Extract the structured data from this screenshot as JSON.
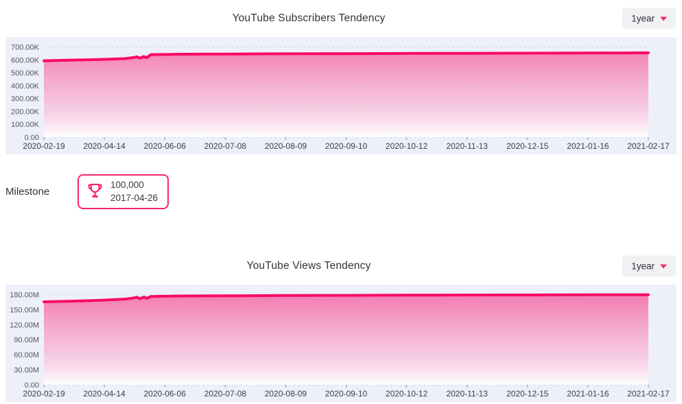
{
  "accent_color": "#f3256e",
  "panels": [
    {
      "title": "YouTube Subscribers Tendency",
      "range_selector": {
        "label": "1year",
        "icon": "caret-down-icon"
      }
    },
    {
      "title": "YouTube Views Tendency",
      "range_selector": {
        "label": "1year",
        "icon": "caret-down-icon"
      }
    }
  ],
  "milestone": {
    "label": "Milestone",
    "badge": {
      "icon": "trophy-icon",
      "value": "100,000",
      "date": "2017-04-26"
    }
  },
  "chart_data": [
    {
      "type": "area",
      "title": "YouTube Subscribers Tendency",
      "background": "#edf0f9",
      "line_color": "#fa0a64",
      "area_gradient": {
        "top": "#f46ca8",
        "mid": "#f8bcd8",
        "bottom": "#ffffff"
      },
      "grid": "dashed",
      "legend": "none",
      "ylim": [
        0,
        725000
      ],
      "y_tick_values": [
        0,
        100000,
        200000,
        300000,
        400000,
        500000,
        600000,
        700000
      ],
      "y_tick_labels": [
        "0.00",
        "100.00K",
        "200.00K",
        "300.00K",
        "400.00K",
        "500.00K",
        "600.00K",
        "700.00K"
      ],
      "x_tick_labels": [
        "2020-02-19",
        "2020-04-14",
        "2020-06-06",
        "2020-07-08",
        "2020-08-09",
        "2020-09-10",
        "2020-10-12",
        "2020-11-13",
        "2020-12-15",
        "2021-01-16",
        "2021-02-17"
      ],
      "series": [
        {
          "name": "Subscribers",
          "points": [
            [
              0,
              594000
            ],
            [
              0.04,
              598000
            ],
            [
              0.08,
              602500
            ],
            [
              0.11,
              606500
            ],
            [
              0.135,
              611000
            ],
            [
              0.148,
              619000
            ],
            [
              0.154,
              625000
            ],
            [
              0.159,
              614000
            ],
            [
              0.165,
              627000
            ],
            [
              0.17,
              618000
            ],
            [
              0.177,
              642000
            ],
            [
              0.21,
              644000
            ],
            [
              0.26,
              645500
            ],
            [
              0.32,
              646500
            ],
            [
              0.4,
              648000
            ],
            [
              0.5,
              649500
            ],
            [
              0.6,
              651000
            ],
            [
              0.7,
              652000
            ],
            [
              0.8,
              653000
            ],
            [
              0.9,
              654000
            ],
            [
              1,
              655500
            ]
          ]
        }
      ]
    },
    {
      "type": "area",
      "title": "YouTube Views Tendency",
      "background": "#edf0f9",
      "line_color": "#fa0a64",
      "area_gradient": {
        "top": "#f46ca8",
        "mid": "#f8bcd8",
        "bottom": "#ffffff"
      },
      "grid": "dashed",
      "legend": "none",
      "ylim": [
        0,
        186000000
      ],
      "y_tick_values": [
        0,
        30000000,
        60000000,
        90000000,
        120000000,
        150000000,
        180000000
      ],
      "y_tick_labels": [
        "0.00",
        "30.00M",
        "60.00M",
        "90.00M",
        "120.00M",
        "150.00M",
        "180.00M"
      ],
      "x_tick_labels": [
        "2020-02-19",
        "2020-04-14",
        "2020-06-06",
        "2020-07-08",
        "2020-08-09",
        "2020-09-10",
        "2020-10-12",
        "2020-11-13",
        "2020-12-15",
        "2021-01-16",
        "2021-02-17"
      ],
      "series": [
        {
          "name": "Views",
          "points": [
            [
              0,
              165500000
            ],
            [
              0.04,
              166500000
            ],
            [
              0.08,
              168000000
            ],
            [
              0.11,
              169500000
            ],
            [
              0.135,
              171000000
            ],
            [
              0.148,
              173000000
            ],
            [
              0.154,
              174500000
            ],
            [
              0.159,
              171500000
            ],
            [
              0.165,
              175000000
            ],
            [
              0.17,
              172500000
            ],
            [
              0.177,
              176200000
            ],
            [
              0.21,
              176800000
            ],
            [
              0.26,
              177200000
            ],
            [
              0.32,
              177500000
            ],
            [
              0.4,
              178000000
            ],
            [
              0.5,
              178400000
            ],
            [
              0.6,
              178700000
            ],
            [
              0.7,
              179000000
            ],
            [
              0.8,
              179200000
            ],
            [
              0.9,
              179400000
            ],
            [
              1,
              179600000
            ]
          ]
        }
      ]
    }
  ]
}
